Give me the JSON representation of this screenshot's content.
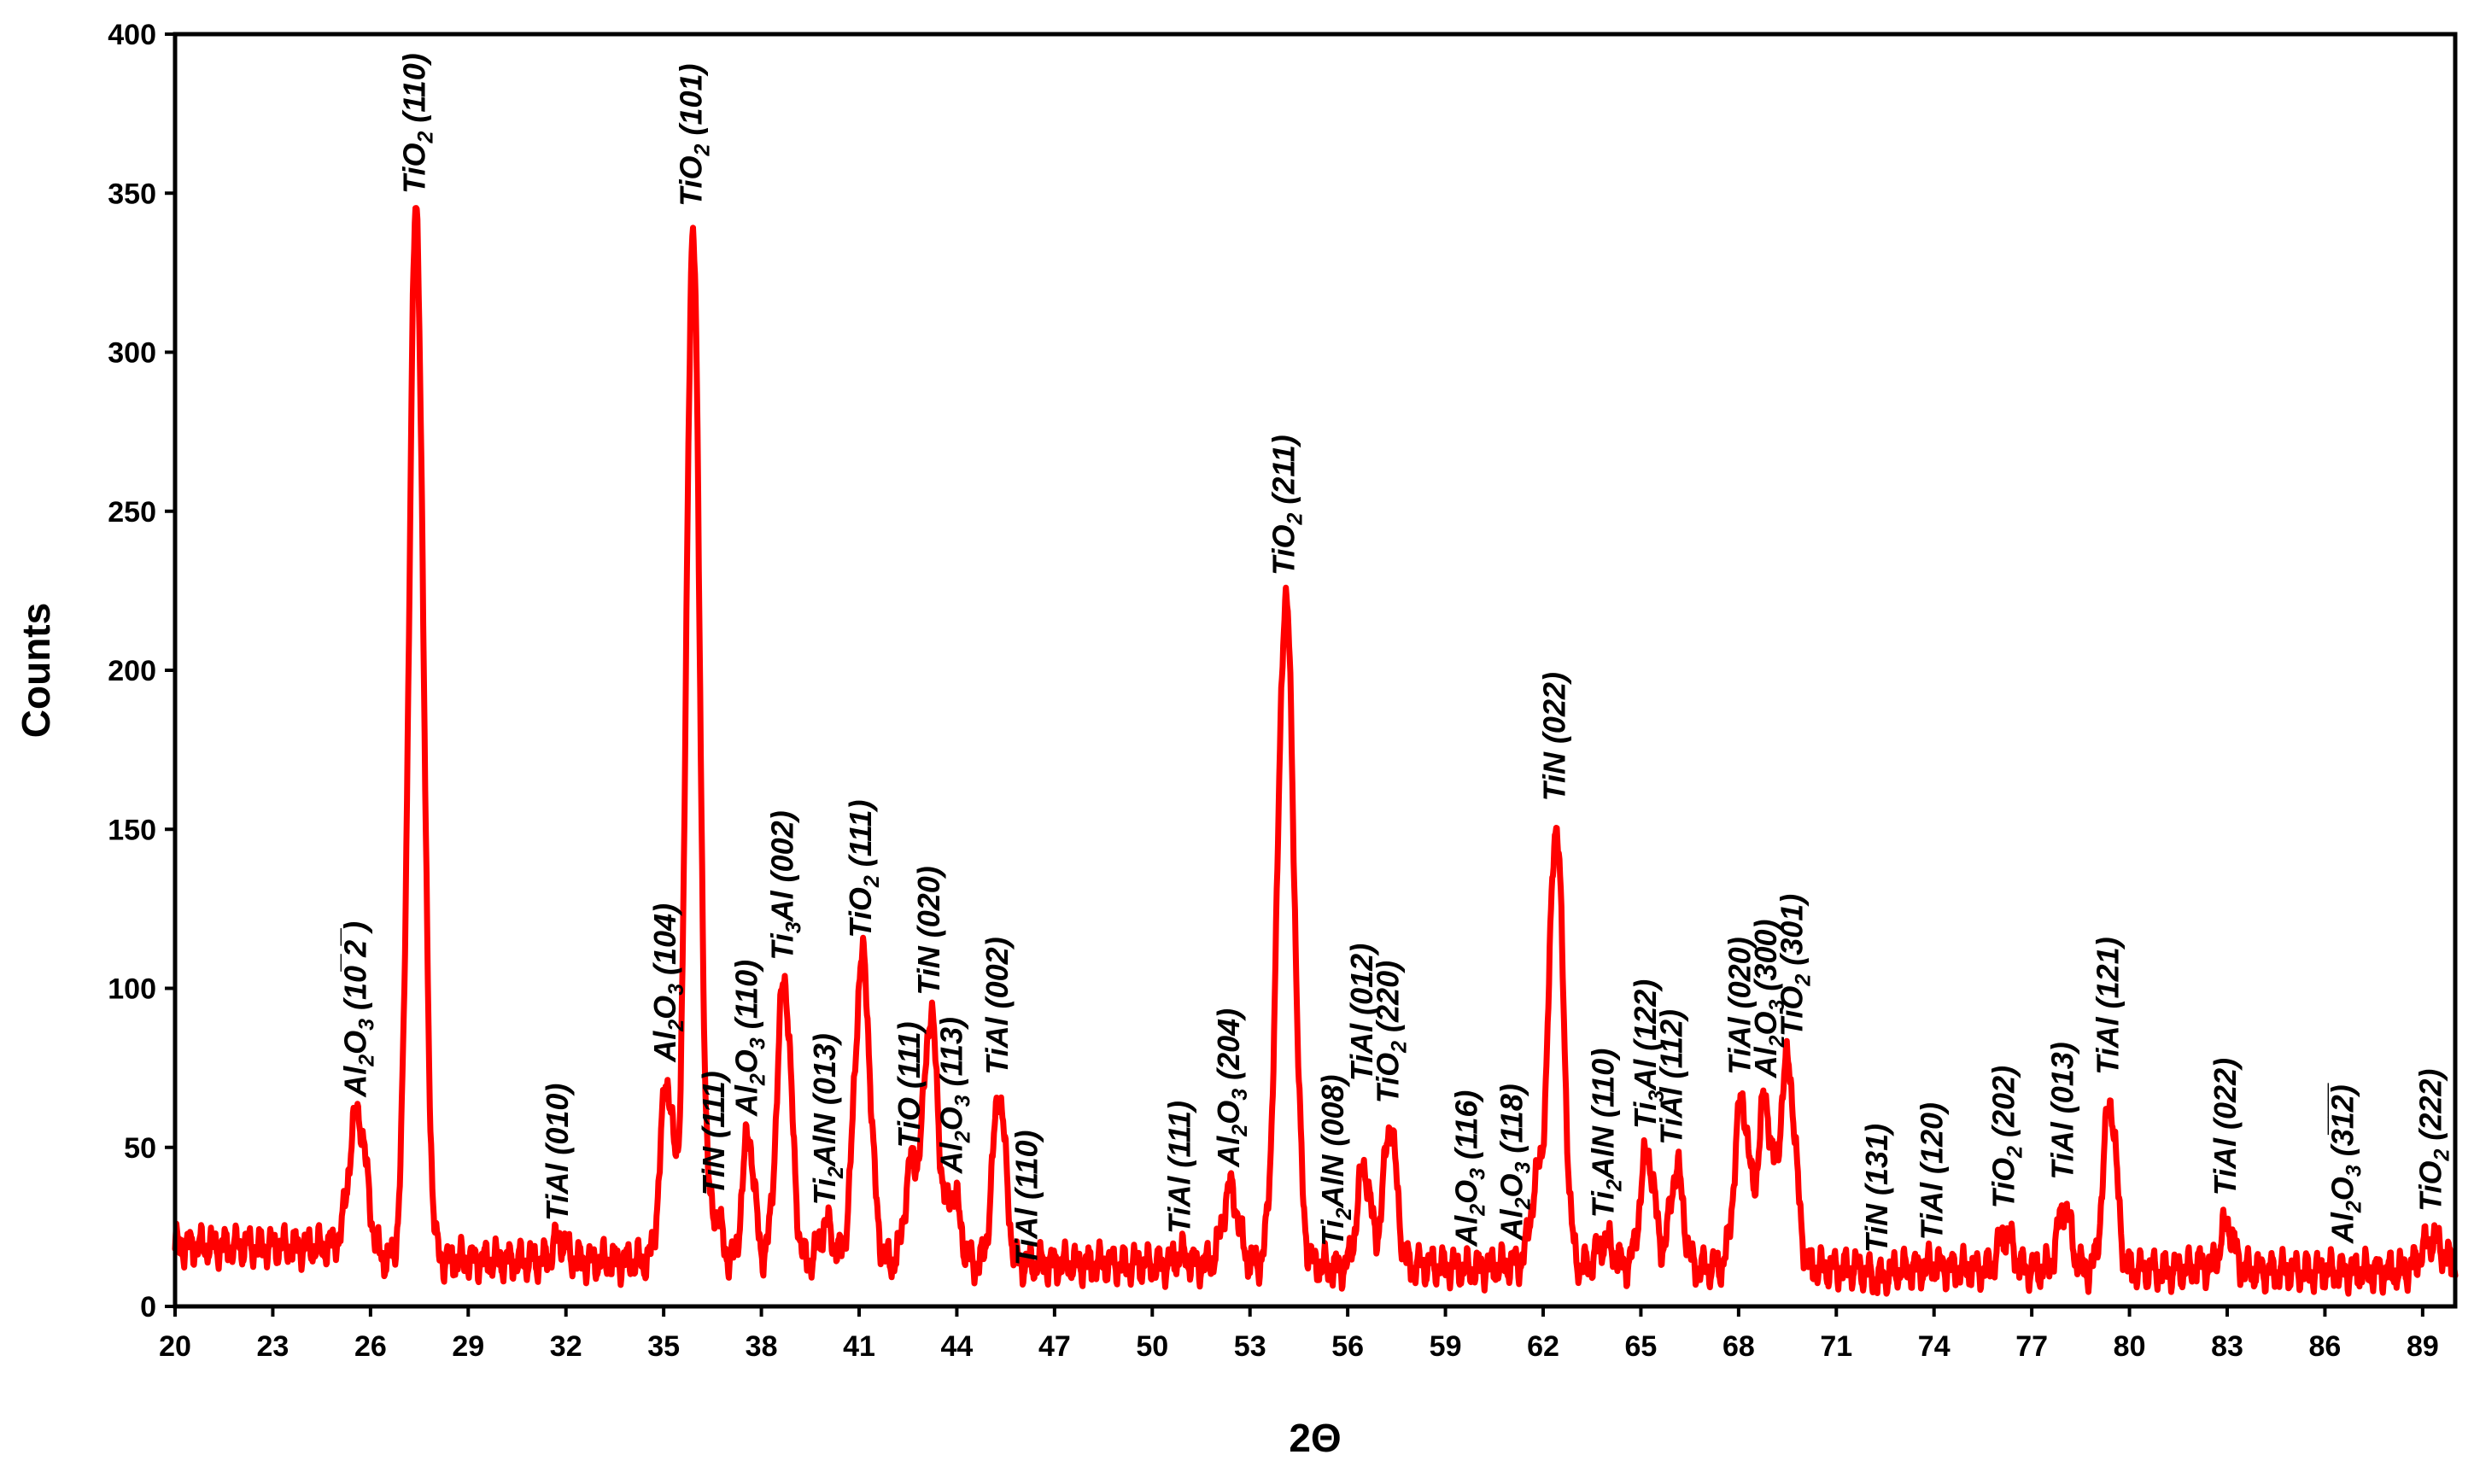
{
  "chart_data": {
    "type": "line",
    "title": "",
    "xlabel": "2Θ",
    "ylabel": "Counts",
    "xlim": [
      20,
      90
    ],
    "ylim": [
      0,
      400
    ],
    "x_ticks": [
      20,
      23,
      26,
      29,
      32,
      35,
      38,
      41,
      44,
      47,
      50,
      53,
      56,
      59,
      62,
      65,
      68,
      71,
      74,
      77,
      80,
      83,
      86,
      89
    ],
    "y_ticks": [
      0,
      50,
      100,
      150,
      200,
      250,
      300,
      350,
      400
    ],
    "series_color": "#ff0000",
    "baseline": 15,
    "peaks": [
      {
        "x": 25.6,
        "y": 61,
        "w": 0.28
      },
      {
        "x": 27.4,
        "y": 345,
        "w": 0.22
      },
      {
        "x": 31.8,
        "y": 22,
        "w": 0.2
      },
      {
        "x": 35.1,
        "y": 72,
        "w": 0.2
      },
      {
        "x": 35.9,
        "y": 341,
        "w": 0.2
      },
      {
        "x": 36.6,
        "y": 30,
        "w": 0.18
      },
      {
        "x": 37.6,
        "y": 55,
        "w": 0.18
      },
      {
        "x": 38.7,
        "y": 104,
        "w": 0.22
      },
      {
        "x": 40.0,
        "y": 27,
        "w": 0.2
      },
      {
        "x": 41.1,
        "y": 111,
        "w": 0.24
      },
      {
        "x": 42.6,
        "y": 45,
        "w": 0.2
      },
      {
        "x": 43.2,
        "y": 93,
        "w": 0.22
      },
      {
        "x": 43.9,
        "y": 37,
        "w": 0.2
      },
      {
        "x": 45.3,
        "y": 68,
        "w": 0.2
      },
      {
        "x": 50.9,
        "y": 18,
        "w": 0.2
      },
      {
        "x": 52.4,
        "y": 39,
        "w": 0.24
      },
      {
        "x": 54.1,
        "y": 225,
        "w": 0.25
      },
      {
        "x": 55.6,
        "y": 14,
        "w": 0.2
      },
      {
        "x": 56.5,
        "y": 46,
        "w": 0.2
      },
      {
        "x": 57.3,
        "y": 59,
        "w": 0.2
      },
      {
        "x": 59.7,
        "y": 14,
        "w": 0.25
      },
      {
        "x": 61.1,
        "y": 16,
        "w": 0.2
      },
      {
        "x": 61.8,
        "y": 40,
        "w": 0.2
      },
      {
        "x": 62.4,
        "y": 154,
        "w": 0.22
      },
      {
        "x": 63.9,
        "y": 23,
        "w": 0.25
      },
      {
        "x": 65.2,
        "y": 51,
        "w": 0.22
      },
      {
        "x": 66.1,
        "y": 46,
        "w": 0.2
      },
      {
        "x": 68.1,
        "y": 68,
        "w": 0.22
      },
      {
        "x": 68.8,
        "y": 67,
        "w": 0.2
      },
      {
        "x": 69.5,
        "y": 80,
        "w": 0.24
      },
      {
        "x": 72.3,
        "y": 12,
        "w": 0.3
      },
      {
        "x": 74.0,
        "y": 16,
        "w": 0.25
      },
      {
        "x": 76.2,
        "y": 26,
        "w": 0.22
      },
      {
        "x": 78.0,
        "y": 35,
        "w": 0.2
      },
      {
        "x": 79.4,
        "y": 68,
        "w": 0.2
      },
      {
        "x": 82.2,
        "y": 17,
        "w": 0.2
      },
      {
        "x": 83.0,
        "y": 30,
        "w": 0.2
      },
      {
        "x": 86.6,
        "y": 15,
        "w": 0.2
      },
      {
        "x": 89.3,
        "y": 25,
        "w": 0.35
      }
    ],
    "annotations": [
      {
        "formula": [
          "Al",
          "2",
          "O",
          "3"
        ],
        "hkl": "(10̅ 2̅ )",
        "x": 25.6,
        "y": 61
      },
      {
        "formula": [
          "TiO",
          "2"
        ],
        "hkl": "(110)",
        "x": 27.4,
        "y": 345
      },
      {
        "formula": [
          "TiAl"
        ],
        "hkl": "(010)",
        "x": 31.8,
        "y": 22
      },
      {
        "formula": [
          "Al",
          "2",
          "O",
          "3"
        ],
        "hkl": "(104)",
        "x": 35.1,
        "y": 72
      },
      {
        "formula": [
          "TiO",
          "2"
        ],
        "hkl": "(101)",
        "x": 35.9,
        "y": 341
      },
      {
        "formula": [
          "TiN"
        ],
        "hkl": "(111)",
        "x": 36.6,
        "y": 30
      },
      {
        "formula": [
          "Al",
          "2",
          "O",
          "3"
        ],
        "hkl": "(110)",
        "x": 37.6,
        "y": 55
      },
      {
        "formula": [
          "Ti",
          "3",
          "Al"
        ],
        "hkl": "(002)",
        "x": 38.7,
        "y": 104
      },
      {
        "formula": [
          "Ti",
          "2",
          "AlN"
        ],
        "hkl": "(013)",
        "x": 40.0,
        "y": 27
      },
      {
        "formula": [
          "TiO",
          "2"
        ],
        "hkl": "(111)",
        "x": 41.1,
        "y": 111
      },
      {
        "formula": [
          "TiO"
        ],
        "hkl": "(111)",
        "x": 42.6,
        "y": 45
      },
      {
        "formula": [
          "TiN"
        ],
        "hkl": "(020)",
        "x": 43.2,
        "y": 93
      },
      {
        "formula": [
          "Al",
          "2",
          "O",
          "3"
        ],
        "hkl": "(113)",
        "x": 43.9,
        "y": 37
      },
      {
        "formula": [
          "TiAl"
        ],
        "hkl": "(002)",
        "x": 45.3,
        "y": 68
      },
      {
        "formula": [
          "TiAl"
        ],
        "hkl": "(110)",
        "x": 46.2,
        "y": 8
      },
      {
        "formula": [
          "TiAl"
        ],
        "hkl": "(111)",
        "x": 50.9,
        "y": 18
      },
      {
        "formula": [
          "Al",
          "2",
          "O",
          "3"
        ],
        "hkl": "(204)",
        "x": 52.4,
        "y": 39
      },
      {
        "formula": [
          "TiO",
          "2"
        ],
        "hkl": "(211)",
        "x": 54.1,
        "y": 225
      },
      {
        "formula": [
          "Ti",
          "2",
          "AlN"
        ],
        "hkl": "(008)",
        "x": 55.6,
        "y": 14
      },
      {
        "formula": [
          "TiAl"
        ],
        "hkl": "(012)",
        "x": 56.5,
        "y": 66
      },
      {
        "formula": [
          "TiO",
          "2"
        ],
        "hkl": "(220)",
        "x": 57.3,
        "y": 59
      },
      {
        "formula": [
          "Al",
          "2",
          "O",
          "3"
        ],
        "hkl": "(116)",
        "x": 59.7,
        "y": 14
      },
      {
        "formula": [
          "Al",
          "2",
          "O",
          "3"
        ],
        "hkl": "(118)",
        "x": 61.1,
        "y": 16
      },
      {
        "formula": [
          "TiN"
        ],
        "hkl": "(022)",
        "x": 62.4,
        "y": 154
      },
      {
        "formula": [
          "Ti",
          "2",
          "AlN"
        ],
        "hkl": "(110)",
        "x": 63.9,
        "y": 23
      },
      {
        "formula": [
          "Ti",
          "3",
          "Al"
        ],
        "hkl": "(122)",
        "x": 65.2,
        "y": 51
      },
      {
        "formula": [
          "TiAl"
        ],
        "hkl": "(112)",
        "x": 66.0,
        "y": 46
      },
      {
        "formula": [
          "TiAl"
        ],
        "hkl": "(020)",
        "x": 68.1,
        "y": 68
      },
      {
        "formula": [
          "Al",
          "2",
          "O",
          "3"
        ],
        "hkl": "(300)",
        "x": 68.9,
        "y": 67
      },
      {
        "formula": [
          "TiO",
          "2"
        ],
        "hkl": "(301)",
        "x": 69.7,
        "y": 80
      },
      {
        "formula": [
          "TiN"
        ],
        "hkl": "(131)",
        "x": 72.3,
        "y": 12
      },
      {
        "formula": [
          "TiAl"
        ],
        "hkl": "(120)",
        "x": 74.0,
        "y": 16
      },
      {
        "formula": [
          "TiO",
          "2"
        ],
        "hkl": "(202)",
        "x": 76.2,
        "y": 26
      },
      {
        "formula": [
          "TiAl"
        ],
        "hkl": "(013)",
        "x": 78.0,
        "y": 35
      },
      {
        "formula": [
          "TiAl"
        ],
        "hkl": "(121)",
        "x": 79.4,
        "y": 68
      },
      {
        "formula": [
          "TiAl"
        ],
        "hkl": "(022)",
        "x": 83.0,
        "y": 30
      },
      {
        "formula": [
          "Al",
          "2",
          "O",
          "3"
        ],
        "hkl": "(3̅1̅2̅)",
        "x": 86.6,
        "y": 15
      },
      {
        "formula": [
          "TiO",
          "2"
        ],
        "hkl": "(222)",
        "x": 89.3,
        "y": 25
      }
    ]
  }
}
